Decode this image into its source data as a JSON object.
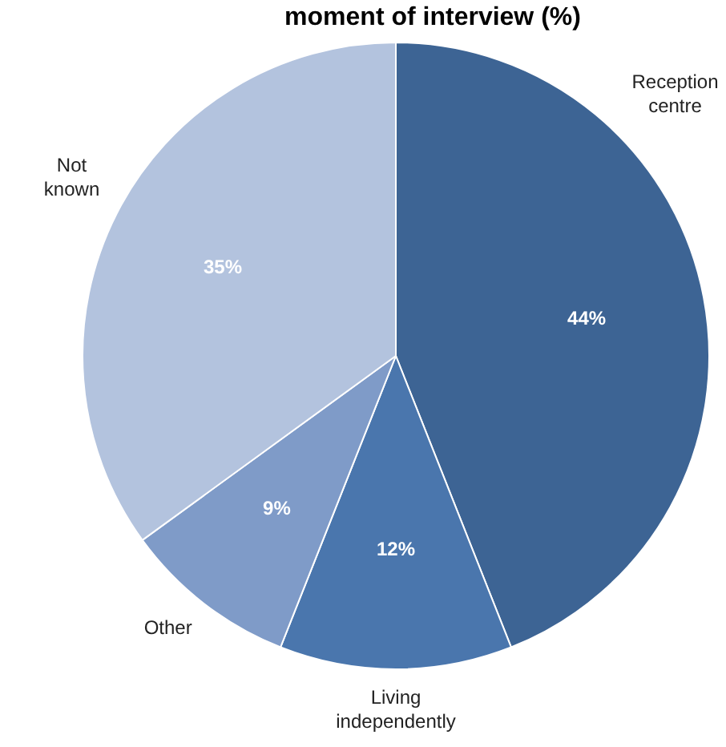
{
  "chart_data": {
    "type": "pie",
    "title": "moment of interview (%)",
    "categories": [
      "Reception centre",
      "Living independently",
      "Other",
      "Not known"
    ],
    "values": [
      44,
      12,
      9,
      35
    ],
    "colors": [
      "#3d6494",
      "#4a76ad",
      "#7f9bc8",
      "#b3c3de"
    ],
    "value_labels": [
      "44%",
      "12%",
      "9%",
      "35%"
    ],
    "legend": false
  }
}
